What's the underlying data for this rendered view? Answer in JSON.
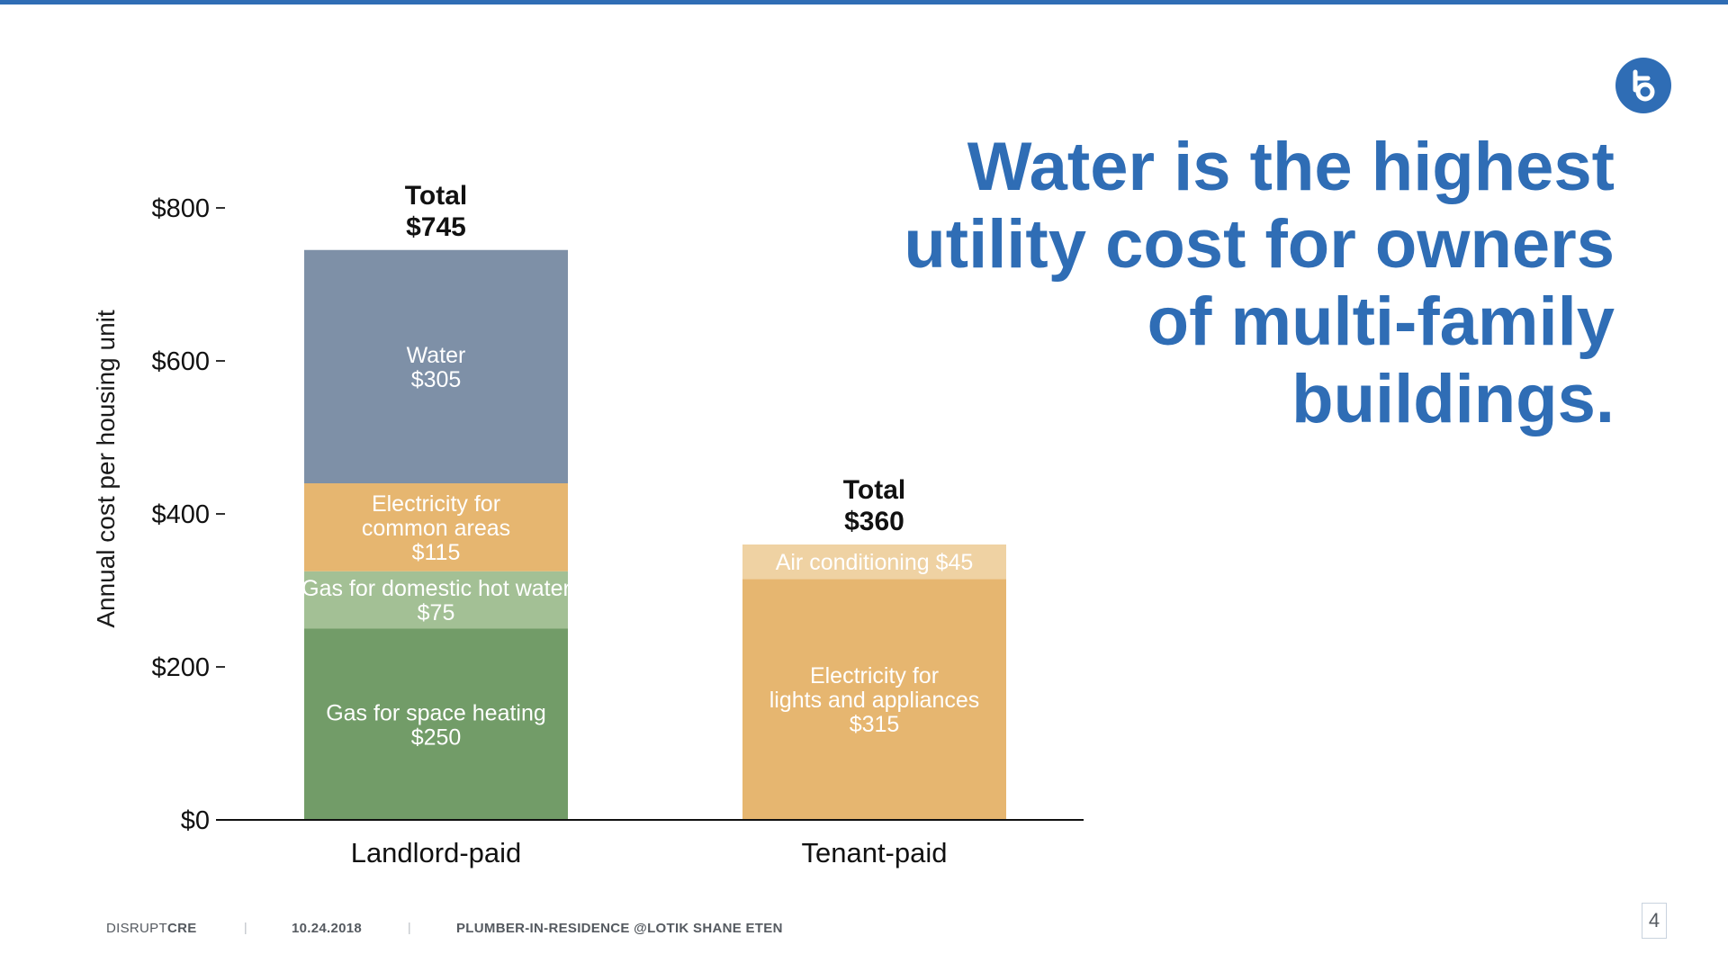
{
  "slide": {
    "headline_lines": [
      "Water is the highest",
      "utility cost for owners",
      "of multi-family",
      "buildings."
    ],
    "page_number": "4",
    "brand_color": "#2f6db5",
    "logo_icon": "lotik-logo-icon"
  },
  "footer": {
    "brand_light": "DISRUPT",
    "brand_bold": "CRE",
    "separator": "|",
    "date": "10.24.2018",
    "credit": "PLUMBER-IN-RESIDENCE @LOTIK SHANE ETEN"
  },
  "chart_data": {
    "type": "bar",
    "stacked": true,
    "title": "",
    "ylabel": "Annual cost per housing unit",
    "xlabel": "",
    "ylim": [
      0,
      800
    ],
    "yticks": [
      0,
      200,
      400,
      600,
      800
    ],
    "ytick_labels": [
      "$0",
      "$200",
      "$400",
      "$600",
      "$800"
    ],
    "grid": false,
    "categories": [
      "Landlord-paid",
      "Tenant-paid"
    ],
    "totals": [
      {
        "label": "Total",
        "value_label": "$745",
        "value": 745
      },
      {
        "label": "Total",
        "value_label": "$360",
        "value": 360
      }
    ],
    "stacks": [
      [
        {
          "name": "Gas for space heating",
          "value": 250,
          "value_label": "$250",
          "color": "#729c68",
          "text_lines": [
            "Gas for space heating",
            "$250"
          ]
        },
        {
          "name": "Gas for domestic hot water",
          "value": 75,
          "value_label": "$75",
          "color": "#a3c095",
          "text_lines": [
            "Gas for domestic hot water",
            "$75"
          ]
        },
        {
          "name": "Electricity for common areas",
          "value": 115,
          "value_label": "$115",
          "color": "#e6b670",
          "text_lines": [
            "Electricity for",
            "common areas",
            "$115"
          ]
        },
        {
          "name": "Water",
          "value": 305,
          "value_label": "$305",
          "color": "#7e90a7",
          "text_lines": [
            "Water",
            "$305"
          ]
        }
      ],
      [
        {
          "name": "Electricity for lights and appliances",
          "value": 315,
          "value_label": "$315",
          "color": "#e6b670",
          "text_lines": [
            "Electricity for",
            "lights and appliances",
            "$315"
          ]
        },
        {
          "name": "Air conditioning",
          "value": 45,
          "value_label": "$45",
          "color": "#efd2a3",
          "text_lines": [
            "Air conditioning $45"
          ]
        }
      ]
    ]
  }
}
